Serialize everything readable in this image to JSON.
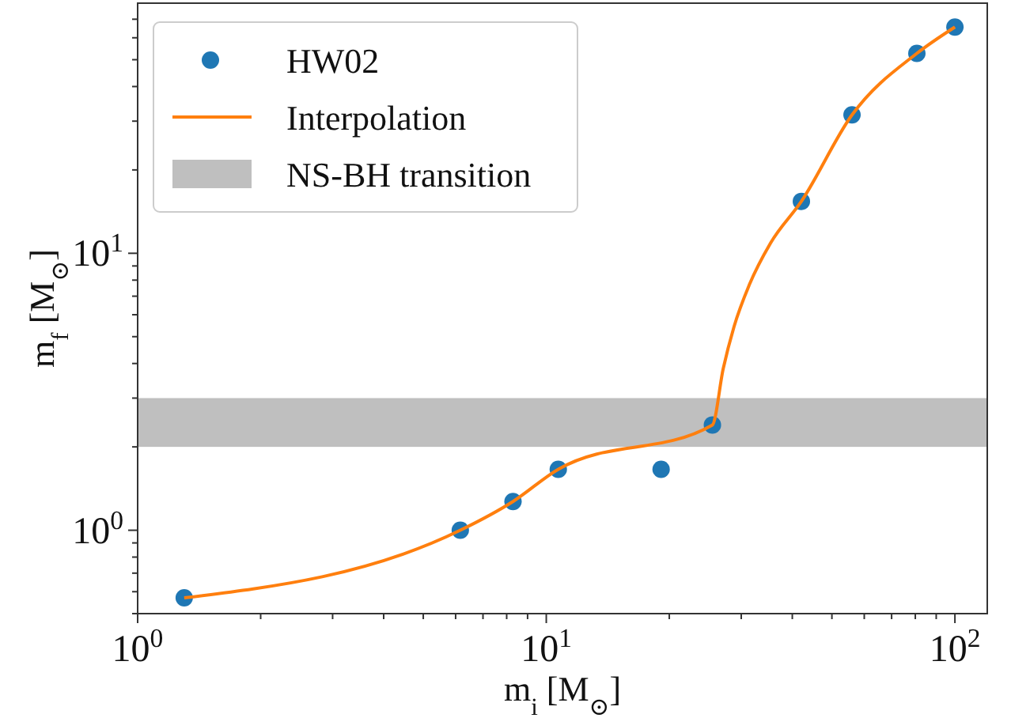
{
  "chart_data": {
    "type": "scatter",
    "xlabel": "m$_{i}$ [M$_{⊙}$]",
    "ylabel": "m$_{f}$ [M$_{⊙}$]",
    "log": "xy",
    "grid": false,
    "legend": "top left",
    "xlim": [
      1,
      120
    ],
    "ylim": [
      0.5,
      80
    ],
    "xticks": [
      {
        "value": 1,
        "label": "10$^{0}$"
      },
      {
        "value": 2,
        "label": null
      },
      {
        "value": 3,
        "label": null
      },
      {
        "value": 4,
        "label": null
      },
      {
        "value": 5,
        "label": null
      },
      {
        "value": 6,
        "label": null
      },
      {
        "value": 7,
        "label": null
      },
      {
        "value": 8,
        "label": null
      },
      {
        "value": 9,
        "label": null
      },
      {
        "value": 10,
        "label": "10$^{1}$"
      },
      {
        "value": 20,
        "label": null
      },
      {
        "value": 30,
        "label": null
      },
      {
        "value": 40,
        "label": null
      },
      {
        "value": 50,
        "label": null
      },
      {
        "value": 60,
        "label": null
      },
      {
        "value": 70,
        "label": null
      },
      {
        "value": 80,
        "label": null
      },
      {
        "value": 90,
        "label": null
      },
      {
        "value": 100,
        "label": "10$^{2}$"
      }
    ],
    "yticks": [
      {
        "value": 0.5,
        "label": null
      },
      {
        "value": 0.6,
        "label": null
      },
      {
        "value": 0.7,
        "label": null
      },
      {
        "value": 0.8,
        "label": null
      },
      {
        "value": 0.9,
        "label": null
      },
      {
        "value": 1,
        "label": "10$^{0}$"
      },
      {
        "value": 2,
        "label": null
      },
      {
        "value": 3,
        "label": null
      },
      {
        "value": 4,
        "label": null
      },
      {
        "value": 5,
        "label": null
      },
      {
        "value": 6,
        "label": null
      },
      {
        "value": 7,
        "label": null
      },
      {
        "value": 8,
        "label": null
      },
      {
        "value": 9,
        "label": null
      },
      {
        "value": 10,
        "label": "10$^{1}$"
      },
      {
        "value": 20,
        "label": null
      },
      {
        "value": 30,
        "label": null
      },
      {
        "value": 40,
        "label": null
      },
      {
        "value": 50,
        "label": null
      },
      {
        "value": 60,
        "label": null
      },
      {
        "value": 70,
        "label": null
      }
    ],
    "bands": [
      {
        "axis": "y",
        "from": 2,
        "to": 3,
        "label": "NS-BH transition",
        "color": "#bfbfbf"
      }
    ],
    "series": [
      {
        "name": "HW02",
        "color": "#1f77b4",
        "marker": "circle",
        "x": [
          1.3,
          6.16,
          8.29,
          10.7,
          19.1,
          25.5,
          42.1,
          56,
          80.7,
          100
        ],
        "values": [
          0.57,
          1.0,
          1.27,
          1.66,
          1.66,
          2.4,
          15.4,
          31.6,
          52.7,
          65.6
        ]
      },
      {
        "name": "Interpolation",
        "type": "line",
        "color": "#ff7f0e",
        "line_style": "solid",
        "x": [
          1.3,
          6.16,
          8.29,
          10.7,
          25.5,
          27.1,
          28.8,
          31.4,
          35.4,
          42.1,
          56,
          80.7,
          100
        ],
        "values": [
          0.57,
          1.0,
          1.27,
          1.66,
          2.4,
          3.83,
          5.43,
          7.7,
          10.9,
          15.4,
          31.6,
          52.7,
          65.6
        ]
      }
    ]
  }
}
